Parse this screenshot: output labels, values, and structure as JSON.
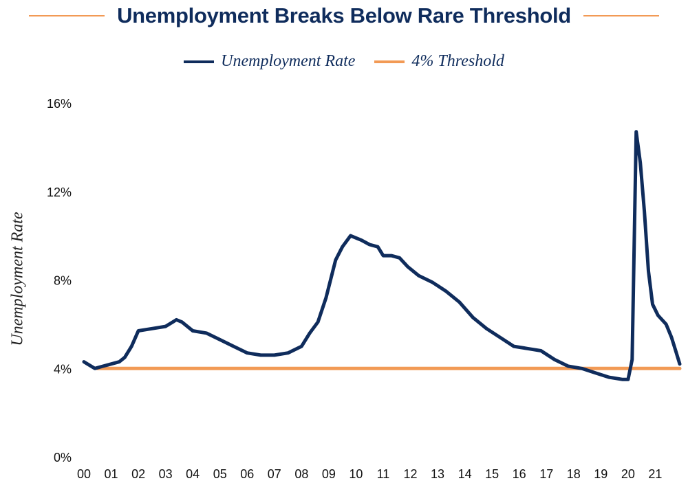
{
  "chart_data": {
    "type": "line",
    "title": "Unemployment Breaks Below Rare Threshold",
    "ylabel": "Unemployment Rate",
    "xlabel": "",
    "legend_position": "top-center",
    "ylim": [
      0,
      16
    ],
    "y_ticks": [
      "0%",
      "4%",
      "8%",
      "12%",
      "16%"
    ],
    "x_ticks": [
      "00",
      "01",
      "02",
      "03",
      "04",
      "05",
      "06",
      "07",
      "08",
      "09",
      "10",
      "11",
      "12",
      "13",
      "14",
      "15",
      "16",
      "17",
      "18",
      "19",
      "20",
      "21"
    ],
    "xlim": [
      2000.0,
      2021.9
    ],
    "grid": false,
    "series": [
      {
        "name": "Unemployment Rate",
        "color": "#0f2c5c",
        "points": [
          [
            2000.0,
            4.3
          ],
          [
            2000.4,
            4.0
          ],
          [
            2000.7,
            4.1
          ],
          [
            2001.0,
            4.2
          ],
          [
            2001.3,
            4.3
          ],
          [
            2001.5,
            4.5
          ],
          [
            2001.75,
            5.0
          ],
          [
            2002.0,
            5.7
          ],
          [
            2002.5,
            5.8
          ],
          [
            2003.0,
            5.9
          ],
          [
            2003.4,
            6.2
          ],
          [
            2003.6,
            6.1
          ],
          [
            2004.0,
            5.7
          ],
          [
            2004.5,
            5.6
          ],
          [
            2005.0,
            5.3
          ],
          [
            2005.5,
            5.0
          ],
          [
            2006.0,
            4.7
          ],
          [
            2006.5,
            4.6
          ],
          [
            2007.0,
            4.6
          ],
          [
            2007.5,
            4.7
          ],
          [
            2008.0,
            5.0
          ],
          [
            2008.3,
            5.6
          ],
          [
            2008.6,
            6.1
          ],
          [
            2008.9,
            7.2
          ],
          [
            2009.25,
            8.9
          ],
          [
            2009.5,
            9.5
          ],
          [
            2009.8,
            10.0
          ],
          [
            2010.2,
            9.8
          ],
          [
            2010.5,
            9.6
          ],
          [
            2010.8,
            9.5
          ],
          [
            2011.0,
            9.1
          ],
          [
            2011.3,
            9.1
          ],
          [
            2011.6,
            9.0
          ],
          [
            2011.9,
            8.6
          ],
          [
            2012.3,
            8.2
          ],
          [
            2012.8,
            7.9
          ],
          [
            2013.3,
            7.5
          ],
          [
            2013.8,
            7.0
          ],
          [
            2014.3,
            6.3
          ],
          [
            2014.8,
            5.8
          ],
          [
            2015.3,
            5.4
          ],
          [
            2015.8,
            5.0
          ],
          [
            2016.3,
            4.9
          ],
          [
            2016.8,
            4.8
          ],
          [
            2017.3,
            4.4
          ],
          [
            2017.8,
            4.1
          ],
          [
            2018.3,
            4.0
          ],
          [
            2018.8,
            3.8
          ],
          [
            2019.3,
            3.6
          ],
          [
            2019.8,
            3.5
          ],
          [
            2020.0,
            3.5
          ],
          [
            2020.15,
            4.4
          ],
          [
            2020.3,
            14.7
          ],
          [
            2020.45,
            13.3
          ],
          [
            2020.6,
            11.1
          ],
          [
            2020.75,
            8.4
          ],
          [
            2020.9,
            6.9
          ],
          [
            2021.1,
            6.4
          ],
          [
            2021.4,
            6.0
          ],
          [
            2021.6,
            5.4
          ],
          [
            2021.75,
            4.8
          ],
          [
            2021.9,
            4.2
          ]
        ]
      },
      {
        "name": "4% Threshold",
        "color": "#f29a55",
        "points": [
          [
            2000.5,
            4.0
          ],
          [
            2021.9,
            4.0
          ]
        ]
      }
    ]
  }
}
